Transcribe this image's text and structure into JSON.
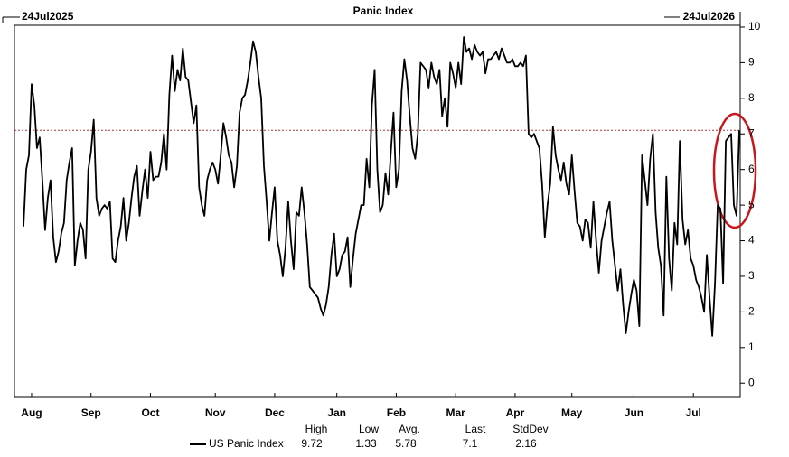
{
  "chart_data": {
    "type": "line",
    "title": "Panic Index",
    "start_label": "24Jul2025",
    "end_label": "24Jul2026",
    "categories": [
      null,
      null,
      null,
      "Aug",
      null,
      null,
      null,
      null,
      null,
      null,
      null,
      null,
      null,
      null,
      null,
      null,
      null,
      null,
      null,
      null,
      null,
      null,
      null,
      null,
      null,
      "Sep",
      null,
      null,
      null,
      null,
      null,
      null,
      null,
      null,
      null,
      null,
      null,
      null,
      null,
      null,
      null,
      null,
      null,
      null,
      null,
      null,
      null,
      "Oct",
      null,
      null,
      null,
      null,
      null,
      null,
      null,
      null,
      null,
      null,
      null,
      null,
      null,
      null,
      null,
      null,
      null,
      null,
      null,
      null,
      null,
      null,
      null,
      "Nov",
      null,
      null,
      null,
      null,
      null,
      null,
      null,
      null,
      null,
      null,
      null,
      null,
      null,
      null,
      null,
      null,
      null,
      null,
      null,
      null,
      null,
      "Dec",
      null,
      null,
      null,
      null,
      null,
      null,
      null,
      null,
      null,
      null,
      null,
      null,
      null,
      null,
      null,
      null,
      null,
      null,
      null,
      null,
      null,
      null,
      "Jan",
      null,
      null,
      null,
      null,
      null,
      null,
      null,
      null,
      null,
      null,
      null,
      null,
      null,
      null,
      null,
      null,
      null,
      null,
      null,
      null,
      null,
      "Feb",
      null,
      null,
      null,
      null,
      null,
      null,
      null,
      null,
      null,
      null,
      null,
      null,
      null,
      null,
      null,
      null,
      null,
      null,
      null,
      null,
      null,
      "Mar",
      null,
      null,
      null,
      null,
      null,
      null,
      null,
      null,
      null,
      null,
      null,
      null,
      null,
      null,
      null,
      null,
      null,
      null,
      null,
      null,
      null,
      "Apr",
      null,
      null,
      null,
      null,
      null,
      null,
      null,
      null,
      null,
      null,
      null,
      null,
      null,
      null,
      null,
      null,
      null,
      null,
      null,
      null,
      "May",
      null,
      null,
      null,
      null,
      null,
      null,
      null,
      null,
      null,
      null,
      null,
      null,
      null,
      null,
      null,
      null,
      null,
      null,
      null,
      null,
      null,
      null,
      "Jun",
      null,
      null,
      null,
      null,
      null,
      null,
      null,
      null,
      null,
      null,
      null,
      null,
      null,
      null,
      null,
      null,
      null,
      null,
      null,
      null,
      null,
      "Jul",
      null,
      null,
      null,
      null,
      null,
      null,
      null,
      null,
      null,
      null,
      null,
      null,
      null,
      null,
      null,
      null,
      null
    ],
    "series": [
      {
        "name": "US Panic Index",
        "color": "#000000",
        "values": [
          4.4,
          6.0,
          6.4,
          8.4,
          7.8,
          6.6,
          6.9,
          5.7,
          4.3,
          5.2,
          5.7,
          4.1,
          3.4,
          3.7,
          4.2,
          4.5,
          5.7,
          6.2,
          6.6,
          3.3,
          4.0,
          4.5,
          4.3,
          3.5,
          6.0,
          6.5,
          7.4,
          5.2,
          4.7,
          4.9,
          5.0,
          4.9,
          5.1,
          3.5,
          3.4,
          4.0,
          4.4,
          5.2,
          4.0,
          4.5,
          5.2,
          5.8,
          6.1,
          4.7,
          5.4,
          6.0,
          5.2,
          6.5,
          5.7,
          5.8,
          5.8,
          6.2,
          7.0,
          6.0,
          8.1,
          9.2,
          8.2,
          8.8,
          8.5,
          9.4,
          8.6,
          8.5,
          7.9,
          7.3,
          7.8,
          5.5,
          5.0,
          4.7,
          5.7,
          6.0,
          6.2,
          6.0,
          5.6,
          6.4,
          7.3,
          6.9,
          6.4,
          6.2,
          5.5,
          6.1,
          7.6,
          8.0,
          8.1,
          8.5,
          9.0,
          9.6,
          9.3,
          8.6,
          8.0,
          6.1,
          5.1,
          4.0,
          4.8,
          5.5,
          4.0,
          3.6,
          3.0,
          3.8,
          5.1,
          4.0,
          3.2,
          4.8,
          4.7,
          5.5,
          4.8,
          3.9,
          2.7,
          2.6,
          2.5,
          2.4,
          2.1,
          1.9,
          2.2,
          2.7,
          3.6,
          4.2,
          3.0,
          3.2,
          3.6,
          3.7,
          4.1,
          2.7,
          3.5,
          4.2,
          4.6,
          5.0,
          5.0,
          6.3,
          5.5,
          7.8,
          8.8,
          6.0,
          4.8,
          5.0,
          5.9,
          5.3,
          6.5,
          7.6,
          5.5,
          6.0,
          8.2,
          9.1,
          8.5,
          7.5,
          6.6,
          6.3,
          7.0,
          9.0,
          8.9,
          8.8,
          8.3,
          9.0,
          8.6,
          8.4,
          8.8,
          7.5,
          8.0,
          7.2,
          9.0,
          8.7,
          8.3,
          9.0,
          8.4,
          9.72,
          9.3,
          9.4,
          9.1,
          9.5,
          9.3,
          9.2,
          9.3,
          8.7,
          9.1,
          9.1,
          9.2,
          9.3,
          9.1,
          9.4,
          9.2,
          9.0,
          9.0,
          9.1,
          8.9,
          8.9,
          9.0,
          8.9,
          9.2,
          7.0,
          6.9,
          7.0,
          6.8,
          6.6,
          5.6,
          4.1,
          5.0,
          5.6,
          7.2,
          6.4,
          6.0,
          5.7,
          6.2,
          5.6,
          5.3,
          6.4,
          5.4,
          4.5,
          4.4,
          4.0,
          4.6,
          4.5,
          3.8,
          5.1,
          4.0,
          3.1,
          4.0,
          4.4,
          4.8,
          5.1,
          4.0,
          3.3,
          2.6,
          3.2,
          2.2,
          1.4,
          2.0,
          2.5,
          2.9,
          2.6,
          1.6,
          6.4,
          5.7,
          5.0,
          6.3,
          7.0,
          4.8,
          3.8,
          3.3,
          1.9,
          5.8,
          3.5,
          2.6,
          4.5,
          3.9,
          6.8,
          4.6,
          3.9,
          4.3,
          3.5,
          3.3,
          2.9,
          2.7,
          2.4,
          2.0,
          3.6,
          2.4,
          1.33,
          2.8,
          5.0,
          4.9,
          2.8,
          6.8,
          6.9,
          7.0,
          5.0,
          4.7,
          7.1
        ]
      }
    ],
    "ylim": [
      -0.4,
      10.05
    ],
    "yticks": [
      0,
      1,
      2,
      3,
      4,
      5,
      6,
      7,
      8,
      9,
      10
    ],
    "reference_line": {
      "value": 7.1,
      "color": "#b03030"
    },
    "stats": {
      "headers": [
        "High",
        "Low",
        "Avg.",
        "Last",
        "StdDev"
      ],
      "values": [
        "9.72",
        "1.33",
        "5.78",
        "7.1",
        "2.16"
      ]
    }
  }
}
